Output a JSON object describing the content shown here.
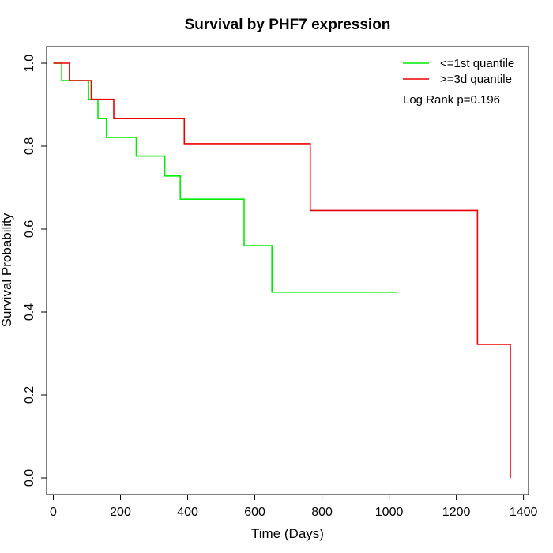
{
  "chart_data": {
    "type": "line",
    "subtype": "kaplan-meier-step",
    "title": "Survival by PHF7 expression",
    "xlabel": "Time (Days)",
    "ylabel": "Survival Probability",
    "xlim": [
      -20,
      1415
    ],
    "ylim": [
      -0.04,
      1.04
    ],
    "xticks": [
      0,
      200,
      400,
      600,
      800,
      1000,
      1200,
      1400
    ],
    "yticks": [
      0.0,
      0.2,
      0.4,
      0.6,
      0.8,
      1.0
    ],
    "xtick_labels": [
      "0",
      "200",
      "400",
      "600",
      "800",
      "1000",
      "1200",
      "1400"
    ],
    "ytick_labels": [
      "0.0",
      "0.2",
      "0.4",
      "0.6",
      "0.8",
      "1.0"
    ],
    "grid": false,
    "legend_position": "top-right",
    "annotation": "Log Rank p=0.196",
    "series": [
      {
        "name": "<=1st quantile",
        "color": "#00ee00",
        "x": [
          0,
          25,
          25,
          105,
          105,
          133,
          133,
          158,
          158,
          247,
          247,
          332,
          332,
          378,
          378,
          568,
          568,
          651,
          651,
          1025
        ],
        "y": [
          1.0,
          1.0,
          0.958,
          0.958,
          0.913,
          0.913,
          0.867,
          0.867,
          0.821,
          0.821,
          0.776,
          0.776,
          0.728,
          0.728,
          0.672,
          0.672,
          0.56,
          0.56,
          0.448,
          0.448
        ]
      },
      {
        "name": ">=3d quantile",
        "color": "#ee0000",
        "x": [
          0,
          48,
          48,
          113,
          113,
          180,
          180,
          390,
          390,
          765,
          765,
          1263,
          1263,
          1361,
          1361
        ],
        "y": [
          1.0,
          1.0,
          0.958,
          0.958,
          0.913,
          0.913,
          0.867,
          0.867,
          0.806,
          0.806,
          0.645,
          0.645,
          0.322,
          0.322,
          0.0
        ]
      }
    ]
  }
}
